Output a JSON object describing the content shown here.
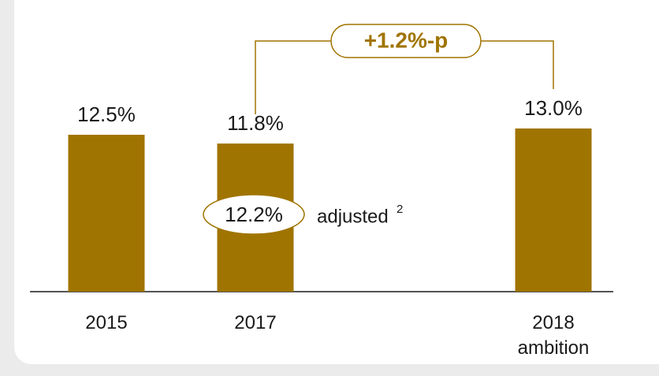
{
  "chart_data": {
    "type": "bar",
    "categories": [
      "2015",
      "2017",
      "2018 ambition"
    ],
    "values": [
      12.5,
      11.8,
      13.0
    ],
    "value_labels": [
      "12.5%",
      "11.8%",
      "13.0%"
    ],
    "color": "#a07400",
    "annotations": {
      "difference": "+1.2%-p",
      "adjusted_value": "12.2%",
      "adjusted_label": "adjusted",
      "footnote": "2"
    }
  }
}
